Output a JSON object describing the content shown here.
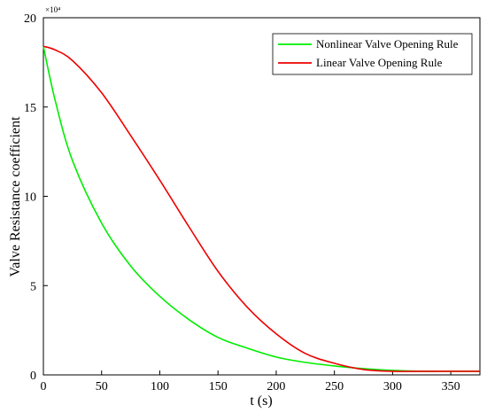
{
  "chart_data": {
    "type": "line",
    "xlabel": "t (s)",
    "ylabel": "Valve Resistance coefficient",
    "y_multiplier_label": "×10⁴",
    "xlim": [
      0,
      375
    ],
    "ylim": [
      0,
      20
    ],
    "xticks": [
      0,
      50,
      100,
      150,
      200,
      250,
      300,
      350
    ],
    "yticks": [
      0,
      5,
      10,
      15,
      20
    ],
    "grid": false,
    "legend_position": "top-right",
    "series": [
      {
        "name": "Nonlinear Valve Opening Rule",
        "color": "#00ee00",
        "x": [
          0,
          10,
          25,
          50,
          75,
          100,
          125,
          150,
          175,
          200,
          225,
          250,
          275,
          300,
          325,
          350,
          375
        ],
        "y": [
          18.4,
          15.4,
          12.0,
          8.5,
          6.1,
          4.4,
          3.1,
          2.1,
          1.5,
          1.0,
          0.7,
          0.5,
          0.35,
          0.25,
          0.2,
          0.2,
          0.2
        ]
      },
      {
        "name": "Linear Valve Opening Rule",
        "color": "#ee0000",
        "x": [
          0,
          10,
          25,
          50,
          75,
          100,
          125,
          150,
          175,
          200,
          225,
          250,
          275,
          300,
          325,
          350,
          375
        ],
        "y": [
          18.4,
          18.2,
          17.6,
          15.8,
          13.4,
          10.9,
          8.3,
          5.8,
          3.8,
          2.3,
          1.2,
          0.65,
          0.3,
          0.2,
          0.2,
          0.2,
          0.2
        ]
      }
    ]
  }
}
